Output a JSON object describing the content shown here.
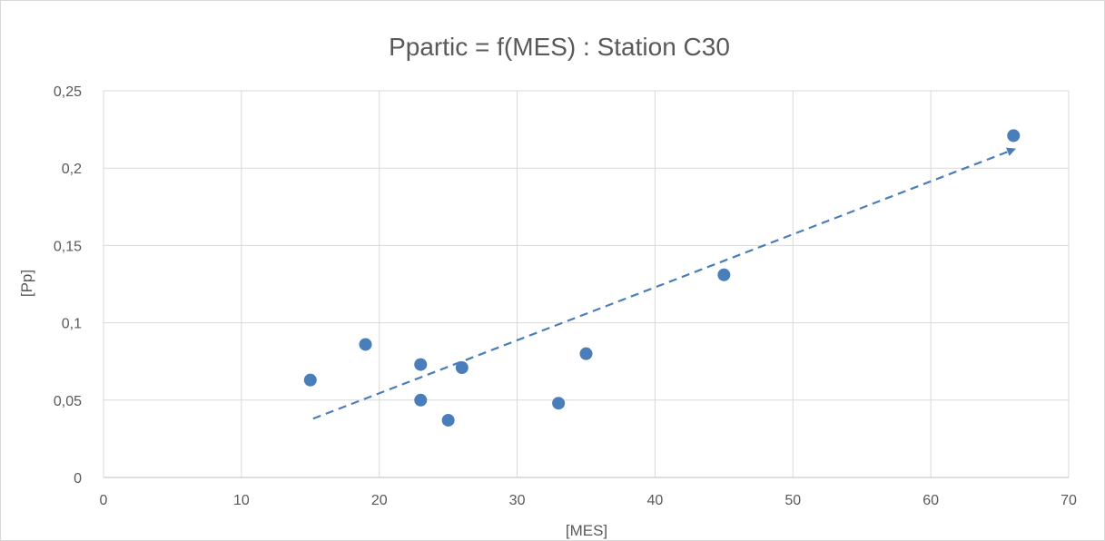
{
  "chart_data": {
    "type": "scatter",
    "title": "Ppartic = f(MES) : Station C30",
    "xlabel": "[MES]",
    "ylabel": "[Pp]",
    "xlim": [
      0,
      70
    ],
    "ylim": [
      0,
      0.25
    ],
    "x_ticks": [
      0,
      10,
      20,
      30,
      40,
      50,
      60,
      70
    ],
    "x_tick_labels": [
      "0",
      "10",
      "20",
      "30",
      "40",
      "50",
      "60",
      "70"
    ],
    "y_ticks": [
      0,
      0.05,
      0.1,
      0.15,
      0.2,
      0.25
    ],
    "y_tick_labels": [
      "0",
      "0,05",
      "0,1",
      "0,15",
      "0,2",
      "0,25"
    ],
    "grid": true,
    "legend": "none",
    "series": [
      {
        "marker_color": "#4a7ebb",
        "points": [
          {
            "x": 15,
            "y": 0.063
          },
          {
            "x": 19,
            "y": 0.086
          },
          {
            "x": 23,
            "y": 0.073
          },
          {
            "x": 23,
            "y": 0.05
          },
          {
            "x": 25,
            "y": 0.037
          },
          {
            "x": 26,
            "y": 0.071
          },
          {
            "x": 33,
            "y": 0.048
          },
          {
            "x": 35,
            "y": 0.08
          },
          {
            "x": 45,
            "y": 0.131
          },
          {
            "x": 66,
            "y": 0.221
          }
        ]
      }
    ],
    "trendline": {
      "style": "dashed-arrow",
      "color": "#4a7ebb",
      "start": {
        "x": 15.2,
        "y": 0.038
      },
      "end": {
        "x": 66,
        "y": 0.212
      }
    }
  }
}
